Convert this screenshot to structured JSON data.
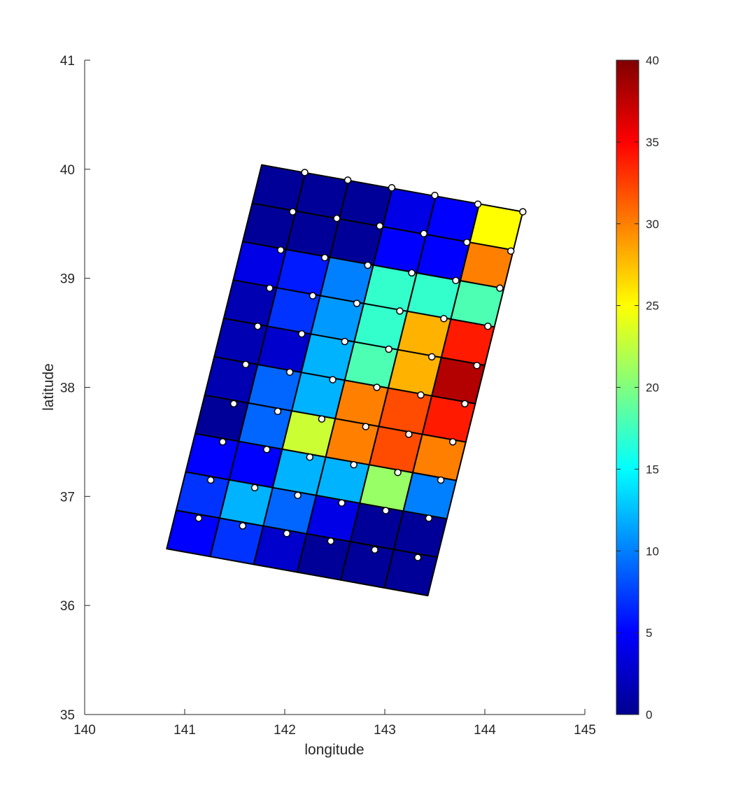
{
  "chart_data": {
    "type": "heatmap",
    "title": "",
    "xlabel": "longitude",
    "ylabel": "latitude",
    "xlim": [
      140,
      145
    ],
    "ylim": [
      35,
      41
    ],
    "xticks": [
      "140",
      "141",
      "142",
      "143",
      "144",
      "145"
    ],
    "yticks": [
      "35",
      "36",
      "37",
      "38",
      "39",
      "40",
      "41"
    ],
    "grid": false,
    "colormap": "jet",
    "colorbar": {
      "position": "right",
      "limits": [
        0,
        40
      ],
      "ticks": [
        "0",
        "5",
        "10",
        "15",
        "20",
        "25",
        "30",
        "35",
        "40"
      ]
    },
    "fault_grid": {
      "columns": 6,
      "rows": 10,
      "corners": {
        "top_left": [
          141.77,
          40.04
        ],
        "top_right": [
          144.38,
          39.61
        ],
        "bottom_left": [
          140.82,
          36.52
        ],
        "bottom_right": [
          143.43,
          36.09
        ]
      },
      "row_order": "top (north) to bottom (south), columns west to east",
      "values": [
        [
          1,
          1,
          1,
          4,
          5,
          25
        ],
        [
          1,
          1,
          1,
          5,
          5,
          30
        ],
        [
          4,
          6,
          10,
          17,
          17,
          18
        ],
        [
          2,
          7,
          11,
          17,
          28,
          34
        ],
        [
          2,
          3,
          12,
          18,
          28,
          38
        ],
        [
          2,
          9,
          12,
          30,
          32,
          34
        ],
        [
          1,
          9,
          23,
          30,
          32,
          30
        ],
        [
          5,
          5,
          12,
          12,
          21,
          10
        ],
        [
          7,
          12,
          9,
          4,
          1,
          1
        ],
        [
          5,
          7,
          3,
          1,
          1,
          1
        ]
      ]
    },
    "markers": {
      "style": "white circle with black edge",
      "points": [
        [
          142.2,
          39.97
        ],
        [
          142.63,
          39.9
        ],
        [
          143.07,
          39.83
        ],
        [
          143.5,
          39.76
        ],
        [
          143.93,
          39.68
        ],
        [
          144.38,
          39.61
        ],
        [
          142.08,
          39.61
        ],
        [
          142.52,
          39.55
        ],
        [
          142.95,
          39.48
        ],
        [
          143.39,
          39.41
        ],
        [
          143.82,
          39.33
        ],
        [
          144.26,
          39.25
        ],
        [
          141.96,
          39.26
        ],
        [
          142.4,
          39.19
        ],
        [
          142.83,
          39.12
        ],
        [
          143.27,
          39.05
        ],
        [
          143.71,
          38.98
        ],
        [
          144.15,
          38.91
        ],
        [
          141.85,
          38.91
        ],
        [
          142.28,
          38.84
        ],
        [
          142.72,
          38.77
        ],
        [
          143.15,
          38.7
        ],
        [
          143.59,
          38.63
        ],
        [
          144.03,
          38.56
        ],
        [
          141.73,
          38.56
        ],
        [
          142.17,
          38.49
        ],
        [
          142.6,
          38.42
        ],
        [
          143.04,
          38.35
        ],
        [
          143.47,
          38.28
        ],
        [
          143.92,
          38.2
        ],
        [
          141.61,
          38.21
        ],
        [
          142.05,
          38.14
        ],
        [
          142.48,
          38.07
        ],
        [
          142.92,
          38.0
        ],
        [
          143.36,
          37.93
        ],
        [
          143.8,
          37.85
        ],
        [
          141.49,
          37.85
        ],
        [
          141.93,
          37.78
        ],
        [
          142.37,
          37.71
        ],
        [
          142.81,
          37.64
        ],
        [
          143.24,
          37.57
        ],
        [
          143.68,
          37.5
        ],
        [
          141.38,
          37.5
        ],
        [
          141.82,
          37.43
        ],
        [
          142.25,
          37.36
        ],
        [
          142.69,
          37.29
        ],
        [
          143.13,
          37.22
        ],
        [
          143.56,
          37.15
        ],
        [
          141.26,
          37.15
        ],
        [
          141.7,
          37.08
        ],
        [
          142.13,
          37.01
        ],
        [
          142.57,
          36.94
        ],
        [
          143.01,
          36.87
        ],
        [
          143.44,
          36.8
        ],
        [
          141.14,
          36.8
        ],
        [
          141.58,
          36.73
        ],
        [
          142.02,
          36.66
        ],
        [
          142.46,
          36.59
        ],
        [
          142.9,
          36.51
        ],
        [
          143.33,
          36.44
        ]
      ]
    }
  }
}
